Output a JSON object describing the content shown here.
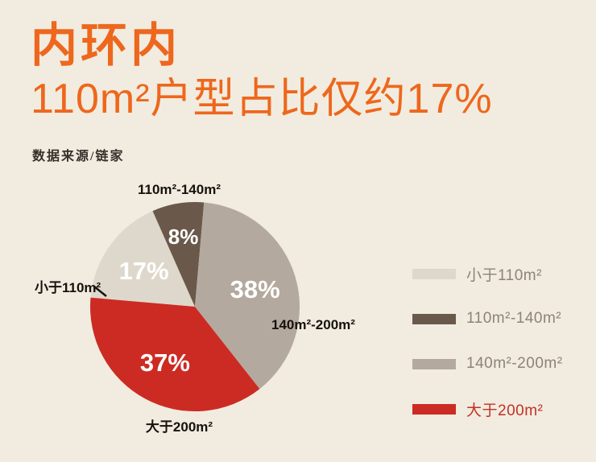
{
  "header": {
    "title_line1": "内环内",
    "title_line2": "110m²户型占比仅约17%",
    "accent_color": "#ee671d",
    "source": "数据来源/链家"
  },
  "chart_data": {
    "type": "pie",
    "title": "内环内 110m²户型占比仅约17%",
    "series": [
      {
        "label": "小于110m²",
        "value": 17,
        "color": "#ded8cc",
        "legend_text_color": "#8c8476"
      },
      {
        "label": "110m²-140m²",
        "value": 8,
        "color": "#6a594b",
        "legend_text_color": "#8c8476"
      },
      {
        "label": "140m²-200m²",
        "value": 38,
        "color": "#b4a99e",
        "legend_text_color": "#8c8476"
      },
      {
        "label": "大于200m²",
        "value": 37,
        "color": "#cc2b24",
        "legend_text_color": "#c23126"
      }
    ],
    "value_suffix": "%",
    "value_label_color": "#ffffff",
    "start_angle_deg": -85,
    "clockwise": true,
    "legend_position": "right"
  }
}
